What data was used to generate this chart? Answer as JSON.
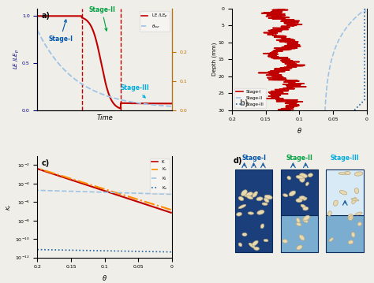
{
  "panel_a": {
    "label": "a)",
    "stage1_label": "Stage-I",
    "stage2_label": "Stage-II",
    "stage3_label": "Stage-III",
    "xlabel": "Time",
    "ylabel_left": "LE /LE_p",
    "stage1_color": "#0055AA",
    "stage2_color": "#00A040",
    "stage3_color": "#00AADD",
    "le_color": "#C00000",
    "theta_color": "#9DC3E6",
    "vline_color": "#C00000",
    "right_axis_color": "#C07000",
    "t1": 0.33,
    "t2": 0.62
  },
  "panel_b": {
    "label": "b)",
    "xlabel": "θ",
    "ylabel": "Depth (mm)",
    "stage1_color": "#C00000",
    "stage2_color": "#9DC3E6",
    "stage3_color": "#2060A0"
  },
  "panel_c": {
    "label": "c)",
    "xlabel": "θ",
    "ylabel": "K_r",
    "K_color": "#C00000",
    "Kc_color": "#FF8C00",
    "Kl_color": "#9DC3E6",
    "Kv_color": "#2060A0"
  },
  "panel_d": {
    "label": "d)",
    "stage1_label": "Stage-I",
    "stage2_label": "Stage-II",
    "stage3_label": "Stage-III",
    "stage1_color": "#0055AA",
    "stage2_color": "#00A040",
    "stage3_color": "#00AADD",
    "bg_dark": "#1A3F7A",
    "bg_light": "#7AADD0",
    "particle_face": "#E8D9B0",
    "particle_edge": "#B8A880"
  }
}
